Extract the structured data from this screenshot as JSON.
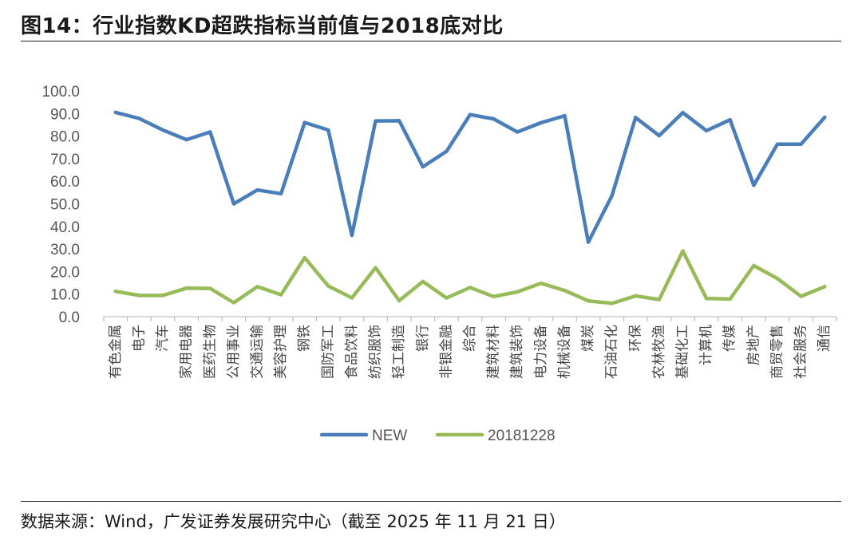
{
  "title": "图14：行业指数KD超跌指标当前值与2018底对比",
  "source": "数据来源：Wind，广发证券发展研究中心（截至 2025 年 11 月 21 日）",
  "colors": {
    "new": "#4a7ebb",
    "base": "#98bb59",
    "axis": "#bfbfbf"
  },
  "chart_data": {
    "type": "line",
    "categories": [
      "有色金属",
      "电子",
      "汽车",
      "家用电器",
      "医药生物",
      "公用事业",
      "交通运输",
      "美容护理",
      "钢铁",
      "国防军工",
      "食品饮料",
      "纺织服饰",
      "轻工制造",
      "银行",
      "非银金融",
      "综合",
      "建筑材料",
      "建筑装饰",
      "电力设备",
      "机械设备",
      "煤炭",
      "石油石化",
      "环保",
      "农林牧渔",
      "基础化工",
      "计算机",
      "传媒",
      "房地产",
      "商贸零售",
      "社会服务",
      "通信"
    ],
    "series": [
      {
        "name": "NEW",
        "color": "#4a7ebb",
        "values": [
          90.5,
          87.8,
          82.7,
          78.4,
          81.8,
          50.0,
          56.1,
          54.5,
          86.0,
          82.7,
          36.0,
          86.7,
          86.8,
          66.4,
          73.2,
          89.5,
          87.6,
          81.8,
          85.9,
          89.0,
          33.0,
          53.6,
          88.2,
          80.2,
          90.4,
          82.4,
          87.2,
          58.2,
          76.4,
          76.4,
          88.3
        ]
      },
      {
        "name": "20181228",
        "color": "#98bb59",
        "values": [
          11.2,
          9.4,
          9.4,
          12.6,
          12.5,
          6.2,
          13.3,
          9.7,
          26.1,
          13.6,
          8.3,
          21.7,
          7.1,
          15.6,
          8.3,
          12.9,
          8.9,
          11.0,
          14.8,
          11.6,
          7.0,
          5.9,
          9.2,
          7.6,
          29.1,
          8.1,
          7.8,
          22.6,
          16.9,
          9.0,
          13.3
        ]
      }
    ],
    "yticks": [
      "100.0",
      "90.0",
      "80.0",
      "70.0",
      "60.0",
      "50.0",
      "40.0",
      "30.0",
      "20.0",
      "10.0",
      "0.0"
    ],
    "ylim": [
      0,
      100
    ],
    "grid": false,
    "legend": "bottom"
  }
}
